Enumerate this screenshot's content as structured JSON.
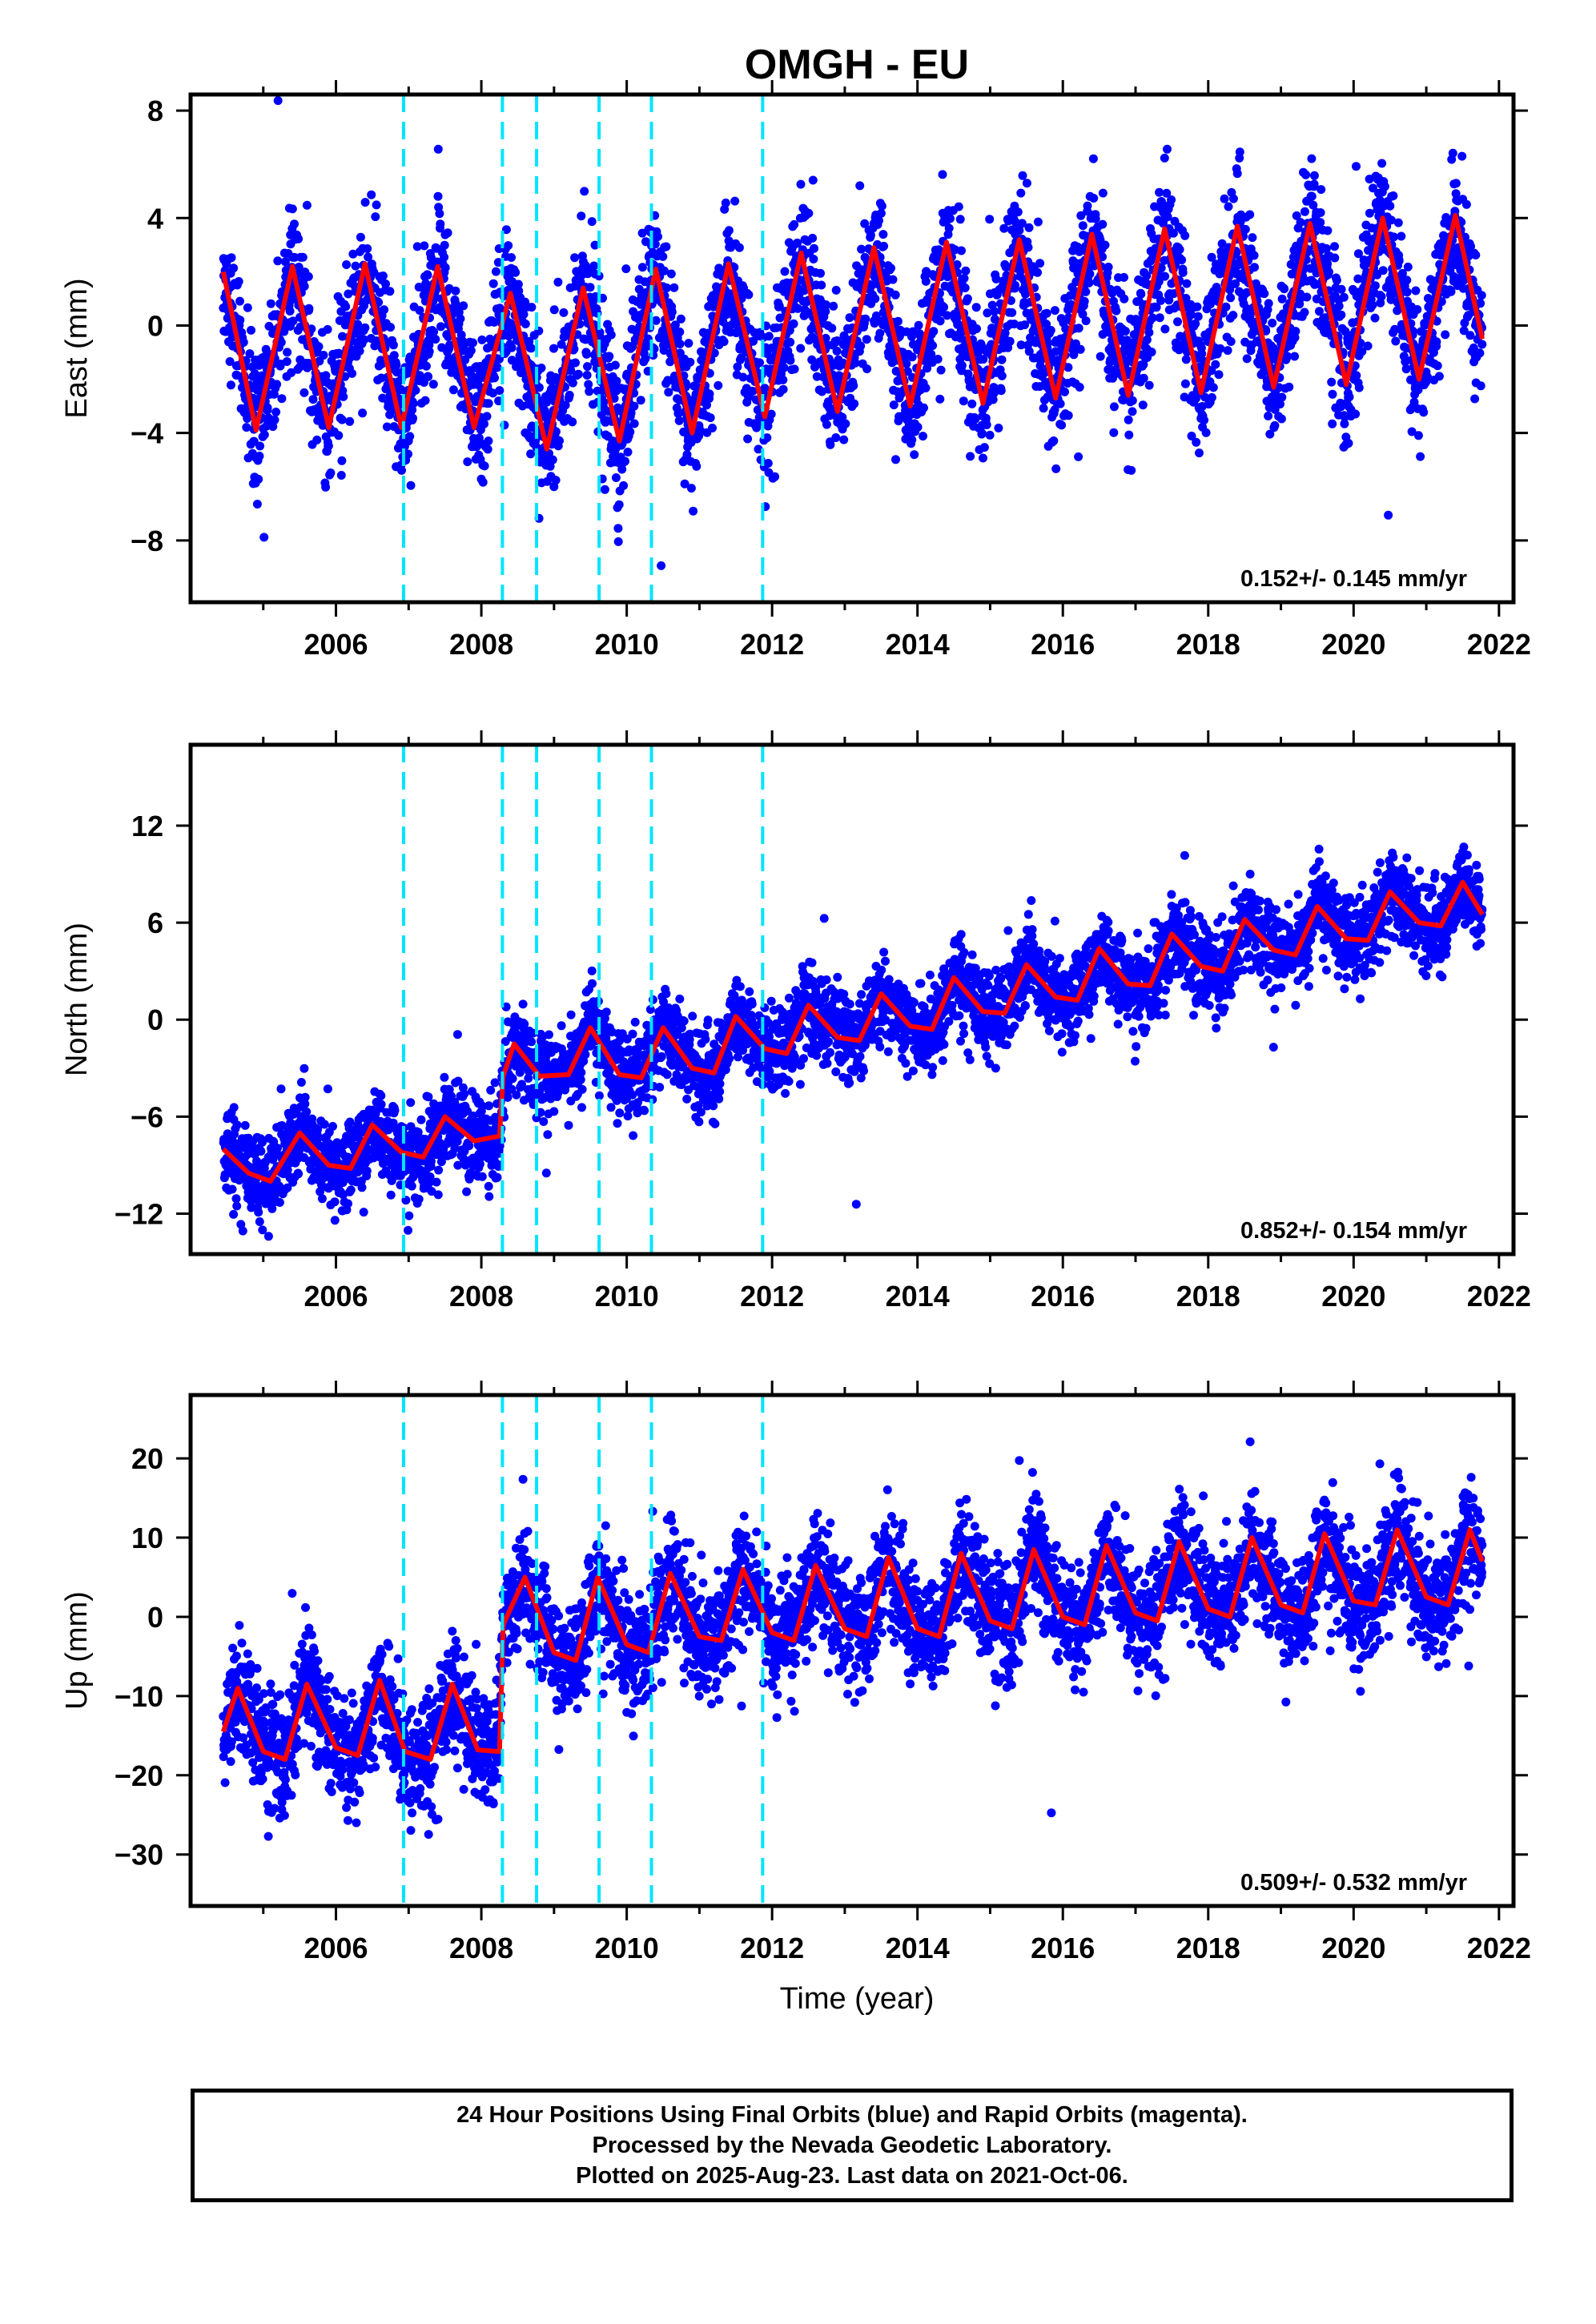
{
  "chart_data": {
    "title": "OMGH - EU",
    "xlabel": "Time (year)",
    "x_ticks": [
      "2006",
      "2008",
      "2010",
      "2012",
      "2014",
      "2016",
      "2018",
      "2020",
      "2022"
    ],
    "xlim": [
      2004.0,
      2022.2
    ],
    "step_events": [
      2006.93,
      2008.29,
      2008.76,
      2009.62,
      2010.34,
      2011.87
    ],
    "data_span": [
      2004.45,
      2021.77
    ],
    "colors": {
      "observations": "#0000ff",
      "model": "#ff0000",
      "steps": "#00e5ff"
    },
    "panels": [
      {
        "type": "scatter",
        "ylabel": "East (mm)",
        "ylim": [
          -10.3,
          8.6
        ],
        "y_ticks": [
          8,
          4,
          0,
          -4,
          -8
        ],
        "rate": "0.152+/- 0.145 mm/yr",
        "series": [
          {
            "type": "scatter",
            "values_summary": "daily positions, seasonal amplitude ~3 mm"
          },
          {
            "type": "line",
            "x": [
              2004.45,
              2004.9,
              2005.4,
              2005.9,
              2006.4,
              2006.9,
              2007.4,
              2007.9,
              2008.4,
              2008.9,
              2009.4,
              2009.9,
              2010.4,
              2010.9,
              2011.4,
              2011.9,
              2012.4,
              2012.9,
              2013.4,
              2013.9,
              2014.4,
              2014.9,
              2015.4,
              2015.9,
              2016.4,
              2016.9,
              2017.4,
              2017.9,
              2018.4,
              2018.9,
              2019.4,
              2019.9,
              2020.4,
              2020.9,
              2021.4,
              2021.77
            ],
            "values": [
              2.0,
              -3.9,
              2.2,
              -3.8,
              2.3,
              -3.8,
              2.2,
              -3.8,
              1.2,
              -4.6,
              1.4,
              -4.3,
              2.1,
              -4.0,
              2.3,
              -3.4,
              2.7,
              -3.2,
              2.9,
              -3.0,
              3.1,
              -2.9,
              3.2,
              -2.7,
              3.4,
              -2.6,
              3.6,
              -2.5,
              3.7,
              -2.3,
              3.8,
              -2.2,
              4.0,
              -2.0,
              4.1,
              -0.5
            ]
          }
        ]
      },
      {
        "type": "scatter",
        "ylabel": "North (mm)",
        "ylim": [
          -14.5,
          17.0
        ],
        "y_ticks": [
          12,
          6,
          0,
          -6,
          -12
        ],
        "rate": "0.852+/- 0.154 mm/yr",
        "series": [
          {
            "type": "scatter",
            "values_summary": "daily positions, trend ~0.85 mm/yr with step in 2008"
          },
          {
            "type": "line",
            "x": [
              2004.45,
              2004.8,
              2005.1,
              2005.5,
              2005.9,
              2006.2,
              2006.5,
              2006.9,
              2007.2,
              2007.5,
              2007.9,
              2008.25,
              2008.3,
              2008.45,
              2008.8,
              2009.2,
              2009.5,
              2009.9,
              2010.2,
              2010.5,
              2010.9,
              2011.2,
              2011.5,
              2011.9,
              2012.2,
              2012.5,
              2012.9,
              2013.2,
              2013.5,
              2013.9,
              2014.2,
              2014.5,
              2014.9,
              2015.2,
              2015.5,
              2015.9,
              2016.2,
              2016.5,
              2016.9,
              2017.2,
              2017.5,
              2017.9,
              2018.2,
              2018.5,
              2018.9,
              2019.2,
              2019.5,
              2019.9,
              2020.2,
              2020.5,
              2020.9,
              2021.2,
              2021.5,
              2021.77
            ],
            "values": [
              -8.0,
              -9.5,
              -10.0,
              -7.0,
              -9.0,
              -9.2,
              -6.5,
              -8.2,
              -8.5,
              -6.0,
              -7.5,
              -7.2,
              -3.5,
              -1.5,
              -3.5,
              -3.4,
              -0.5,
              -3.4,
              -3.6,
              -0.5,
              -3.0,
              -3.3,
              0.2,
              -1.8,
              -2.1,
              0.9,
              -1.1,
              -1.3,
              1.6,
              -0.4,
              -0.6,
              2.6,
              0.5,
              0.4,
              3.4,
              1.4,
              1.2,
              4.4,
              2.2,
              2.1,
              5.3,
              3.3,
              3.0,
              6.2,
              4.3,
              4.0,
              7.0,
              5.0,
              4.9,
              7.9,
              6.0,
              5.8,
              8.5,
              6.5
            ]
          }
        ]
      },
      {
        "type": "scatter",
        "ylabel": "Up (mm)",
        "ylim": [
          -36.5,
          28.0
        ],
        "y_ticks": [
          20,
          10,
          0,
          -10,
          -20,
          -30
        ],
        "rate": "0.509+/- 0.532 mm/yr",
        "series": [
          {
            "type": "scatter",
            "values_summary": "daily positions, seasonal amplitude ~6 mm with step in 2008"
          },
          {
            "type": "line",
            "x": [
              2004.45,
              2004.65,
              2005.0,
              2005.3,
              2005.6,
              2006.0,
              2006.3,
              2006.6,
              2006.95,
              2007.3,
              2007.6,
              2007.95,
              2008.25,
              2008.3,
              2008.6,
              2009.0,
              2009.3,
              2009.6,
              2010.0,
              2010.3,
              2010.6,
              2011.0,
              2011.3,
              2011.6,
              2012.0,
              2012.3,
              2012.6,
              2013.0,
              2013.3,
              2013.6,
              2014.0,
              2014.3,
              2014.6,
              2015.0,
              2015.3,
              2015.6,
              2016.0,
              2016.3,
              2016.6,
              2017.0,
              2017.3,
              2017.6,
              2018.0,
              2018.3,
              2018.6,
              2019.0,
              2019.3,
              2019.6,
              2020.0,
              2020.3,
              2020.6,
              2021.0,
              2021.3,
              2021.6,
              2021.77
            ],
            "values": [
              -14.5,
              -9.0,
              -17.0,
              -18.0,
              -8.5,
              -16.5,
              -17.5,
              -8.0,
              -17.0,
              -18.0,
              -8.5,
              -16.8,
              -17.0,
              -1.0,
              5.0,
              -4.5,
              -5.5,
              5.0,
              -3.5,
              -4.5,
              5.5,
              -2.5,
              -3.0,
              6.0,
              -2.0,
              -3.0,
              6.5,
              -1.5,
              -2.5,
              7.5,
              -1.5,
              -2.5,
              8.0,
              -0.5,
              -1.5,
              8.5,
              0.0,
              -1.0,
              9.0,
              0.5,
              -0.5,
              9.5,
              1.0,
              0.0,
              10.0,
              1.5,
              0.5,
              10.5,
              2.0,
              1.5,
              11.0,
              2.5,
              1.5,
              11.0,
              7.0
            ]
          }
        ]
      }
    ]
  },
  "footer": {
    "line1": "24 Hour Positions Using Final Orbits (blue) and Rapid Orbits (magenta).",
    "line2": "Processed by the Nevada Geodetic Laboratory.",
    "line3": "Plotted on 2025-Aug-23. Last data on 2021-Oct-06."
  }
}
